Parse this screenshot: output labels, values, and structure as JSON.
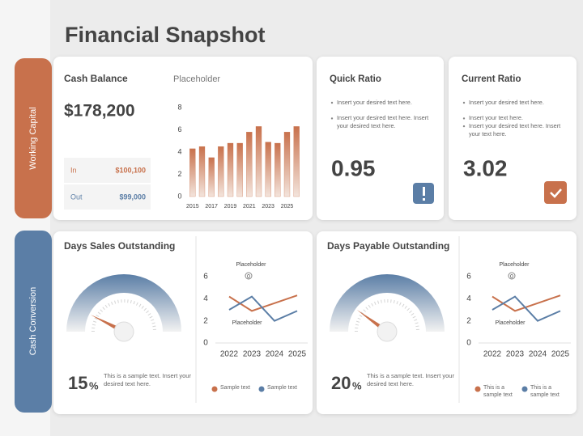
{
  "title": "Financial Snapshot",
  "sections": [
    "Working Capital",
    "Cash Conversion"
  ],
  "cash_balance": {
    "title": "Cash Balance",
    "amount": "$178,200",
    "rows": [
      {
        "label": "In",
        "value": "$100,100"
      },
      {
        "label": "Out",
        "value": "$99,000"
      }
    ],
    "chart": {
      "type": "bar",
      "title": "Placeholder",
      "categories": [
        "2015",
        null,
        "2017",
        null,
        "2019",
        null,
        "2021",
        null,
        "2023",
        null,
        "2025",
        null
      ],
      "values": [
        4.3,
        4.5,
        3.5,
        4.5,
        4.8,
        4.8,
        5.8,
        6.3,
        4.9,
        4.8,
        5.8,
        6.3
      ],
      "color": "#c8714c",
      "ylim": [
        0,
        8
      ],
      "yticks": [
        0,
        2,
        4,
        6,
        8
      ]
    }
  },
  "ratios": [
    {
      "title": "Quick Ratio",
      "bullets": [
        "Insert your desired text here.",
        "Insert your desired text here. Insert your desired text here."
      ],
      "value": "0.95"
    },
    {
      "title": "Current Ratio",
      "bullets": [
        "Insert your desired text here.",
        "Insert your text here.",
        "Insert your desired text here. Insert your text here."
      ],
      "value": "3.02"
    }
  ],
  "panels": [
    {
      "title": "Days Sales Outstanding",
      "gauge": {
        "type": "gauge",
        "value": 15,
        "value_label": "15",
        "unit": "%",
        "ylim": [
          0,
          100
        ]
      },
      "note": "This is a sample text. Insert your desired text here.",
      "chart": {
        "type": "line",
        "annotations": [
          "Placeholder",
          "Placeholder"
        ],
        "marker": "0",
        "categories": [
          "2022",
          "2023",
          "2024",
          "2025"
        ],
        "series": [
          {
            "name": "Sample text",
            "color": "#c8714c",
            "values": [
              4.2,
              2.9,
              3.6,
              4.3
            ]
          },
          {
            "name": "Sample text",
            "color": "#5b7ea6",
            "values": [
              3.0,
              4.2,
              2.0,
              2.9
            ]
          }
        ],
        "ylim": [
          0,
          6
        ],
        "yticks": [
          0,
          2,
          4,
          6
        ]
      }
    },
    {
      "title": "Days Payable Outstanding",
      "gauge": {
        "type": "gauge",
        "value": 20,
        "value_label": "20",
        "unit": "%",
        "ylim": [
          0,
          100
        ]
      },
      "note": "This is a sample text. Insert your desired text here.",
      "chart": {
        "type": "line",
        "annotations": [
          "Placeholder",
          "Placeholder"
        ],
        "marker": "0",
        "categories": [
          "2022",
          "2023",
          "2024",
          "2025"
        ],
        "series": [
          {
            "name": "This is a sample text",
            "color": "#c8714c",
            "values": [
              4.2,
              2.9,
              3.6,
              4.3
            ]
          },
          {
            "name": "This is a sample text",
            "color": "#5b7ea6",
            "values": [
              3.0,
              4.2,
              2.0,
              2.9
            ]
          }
        ],
        "ylim": [
          0,
          6
        ],
        "yticks": [
          0,
          2,
          4,
          6
        ]
      }
    }
  ]
}
